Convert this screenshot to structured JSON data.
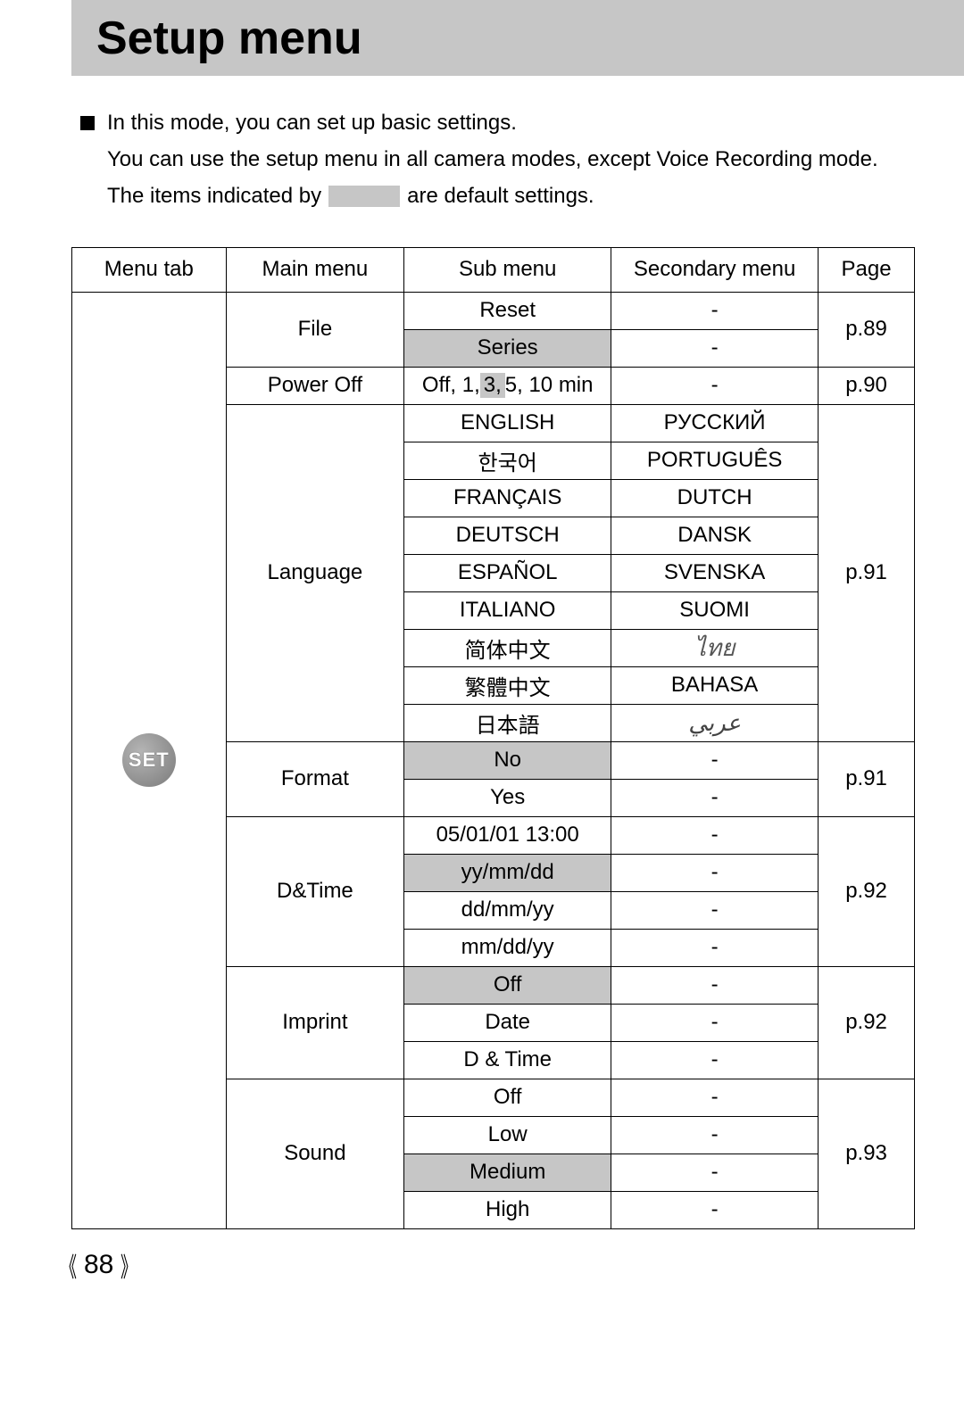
{
  "title": "Setup menu",
  "intro": {
    "line1": "In this mode, you can set up basic settings.",
    "line2": "You can use the setup menu in all camera modes, except Voice Recording mode.",
    "line3_a": "The items indicated by",
    "line3_b": "are default settings."
  },
  "headers": {
    "menu_tab": "Menu tab",
    "main_menu": "Main menu",
    "sub_menu": "Sub menu",
    "secondary_menu": "Secondary menu",
    "page": "Page"
  },
  "set_badge": "SET",
  "file": {
    "label": "File",
    "reset": "Reset",
    "series": "Series",
    "sec1": "-",
    "sec2": "-",
    "page": "p.89"
  },
  "poweroff": {
    "label": "Power Off",
    "prefix": "Off, 1, ",
    "default": "3,",
    "suffix": " 5, 10 min",
    "sec": "-",
    "page": "p.90"
  },
  "language": {
    "label": "Language",
    "page": "p.91",
    "rows": [
      {
        "sub": "ENGLISH",
        "sec": "РУССКИЙ"
      },
      {
        "sub": "한국어",
        "sec": "PORTUGUÊS"
      },
      {
        "sub": "FRANÇAIS",
        "sec": "DUTCH"
      },
      {
        "sub": "DEUTSCH",
        "sec": "DANSK"
      },
      {
        "sub": "ESPAÑOL",
        "sec": "SVENSKA"
      },
      {
        "sub": "ITALIANO",
        "sec": "SUOMI"
      },
      {
        "sub": "简体中文",
        "sec": "ไทย"
      },
      {
        "sub": "繁體中文",
        "sec": "BAHASA"
      },
      {
        "sub": "日本語",
        "sec": "عربي"
      }
    ]
  },
  "format": {
    "label": "Format",
    "no": "No",
    "yes": "Yes",
    "sec1": "-",
    "sec2": "-",
    "page": "p.91"
  },
  "dtime": {
    "label": "D&Time",
    "page": "p.92",
    "r1": "05/01/01 13:00",
    "r2": "yy/mm/dd",
    "r3": "dd/mm/yy",
    "r4": "mm/dd/yy",
    "s1": "-",
    "s2": "-",
    "s3": "-",
    "s4": "-"
  },
  "imprint": {
    "label": "Imprint",
    "page": "p.92",
    "r1": "Off",
    "r2": "Date",
    "r3": "D & Time",
    "s1": "-",
    "s2": "-",
    "s3": "-"
  },
  "sound": {
    "label": "Sound",
    "page": "p.93",
    "r1": "Off",
    "r2": "Low",
    "r3": "Medium",
    "r4": "High",
    "s1": "-",
    "s2": "-",
    "s3": "-",
    "s4": "-"
  },
  "page_number": "88",
  "colors": {
    "shade": "#c6c6c6",
    "border": "#000000",
    "background": "#ffffff",
    "text": "#000000"
  }
}
